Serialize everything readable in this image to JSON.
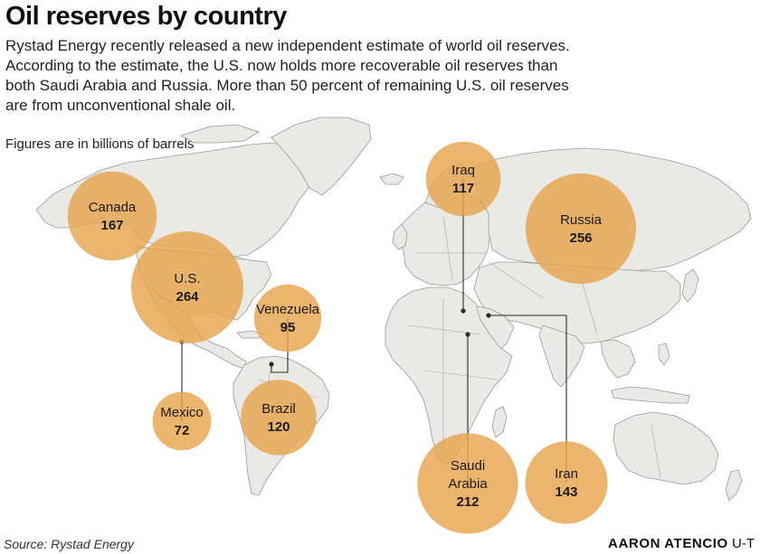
{
  "header": {
    "title": "Oil reserves by country",
    "intro_lines": [
      "Rystad Energy recently released a new independent estimate of world oil reserves.",
      "According to the estimate, the U.S. now holds more recoverable oil reserves than",
      "both Saudi Arabia and Russia. More than 50 percent of remaining U.S. oil reserves",
      "are from unconventional shale oil."
    ],
    "units_note": "Figures are in billions of barrels"
  },
  "colors": {
    "bubble": "#e8a54e",
    "land": "#e9e9e6",
    "border": "#9a9a9a",
    "leader": "#2b2b2b"
  },
  "reserves": [
    {
      "id": "canada",
      "name_lines": [
        "Canada"
      ],
      "value": 167
    },
    {
      "id": "us",
      "name_lines": [
        "U.S."
      ],
      "value": 264
    },
    {
      "id": "mexico",
      "name_lines": [
        "Mexico"
      ],
      "value": 72
    },
    {
      "id": "venezuela",
      "name_lines": [
        "Venezuela"
      ],
      "value": 95
    },
    {
      "id": "brazil",
      "name_lines": [
        "Brazil"
      ],
      "value": 120
    },
    {
      "id": "iraq",
      "name_lines": [
        "Iraq"
      ],
      "value": 117
    },
    {
      "id": "russia",
      "name_lines": [
        "Russia"
      ],
      "value": 256
    },
    {
      "id": "saudi-arabia",
      "name_lines": [
        "Saudi",
        "Arabia"
      ],
      "value": 212
    },
    {
      "id": "iran",
      "name_lines": [
        "Iran"
      ],
      "value": 143
    }
  ],
  "footer": {
    "source": "Source: Rystad Energy",
    "credit_name": "AARON ATENCIO",
    "credit_org": "U-T"
  }
}
